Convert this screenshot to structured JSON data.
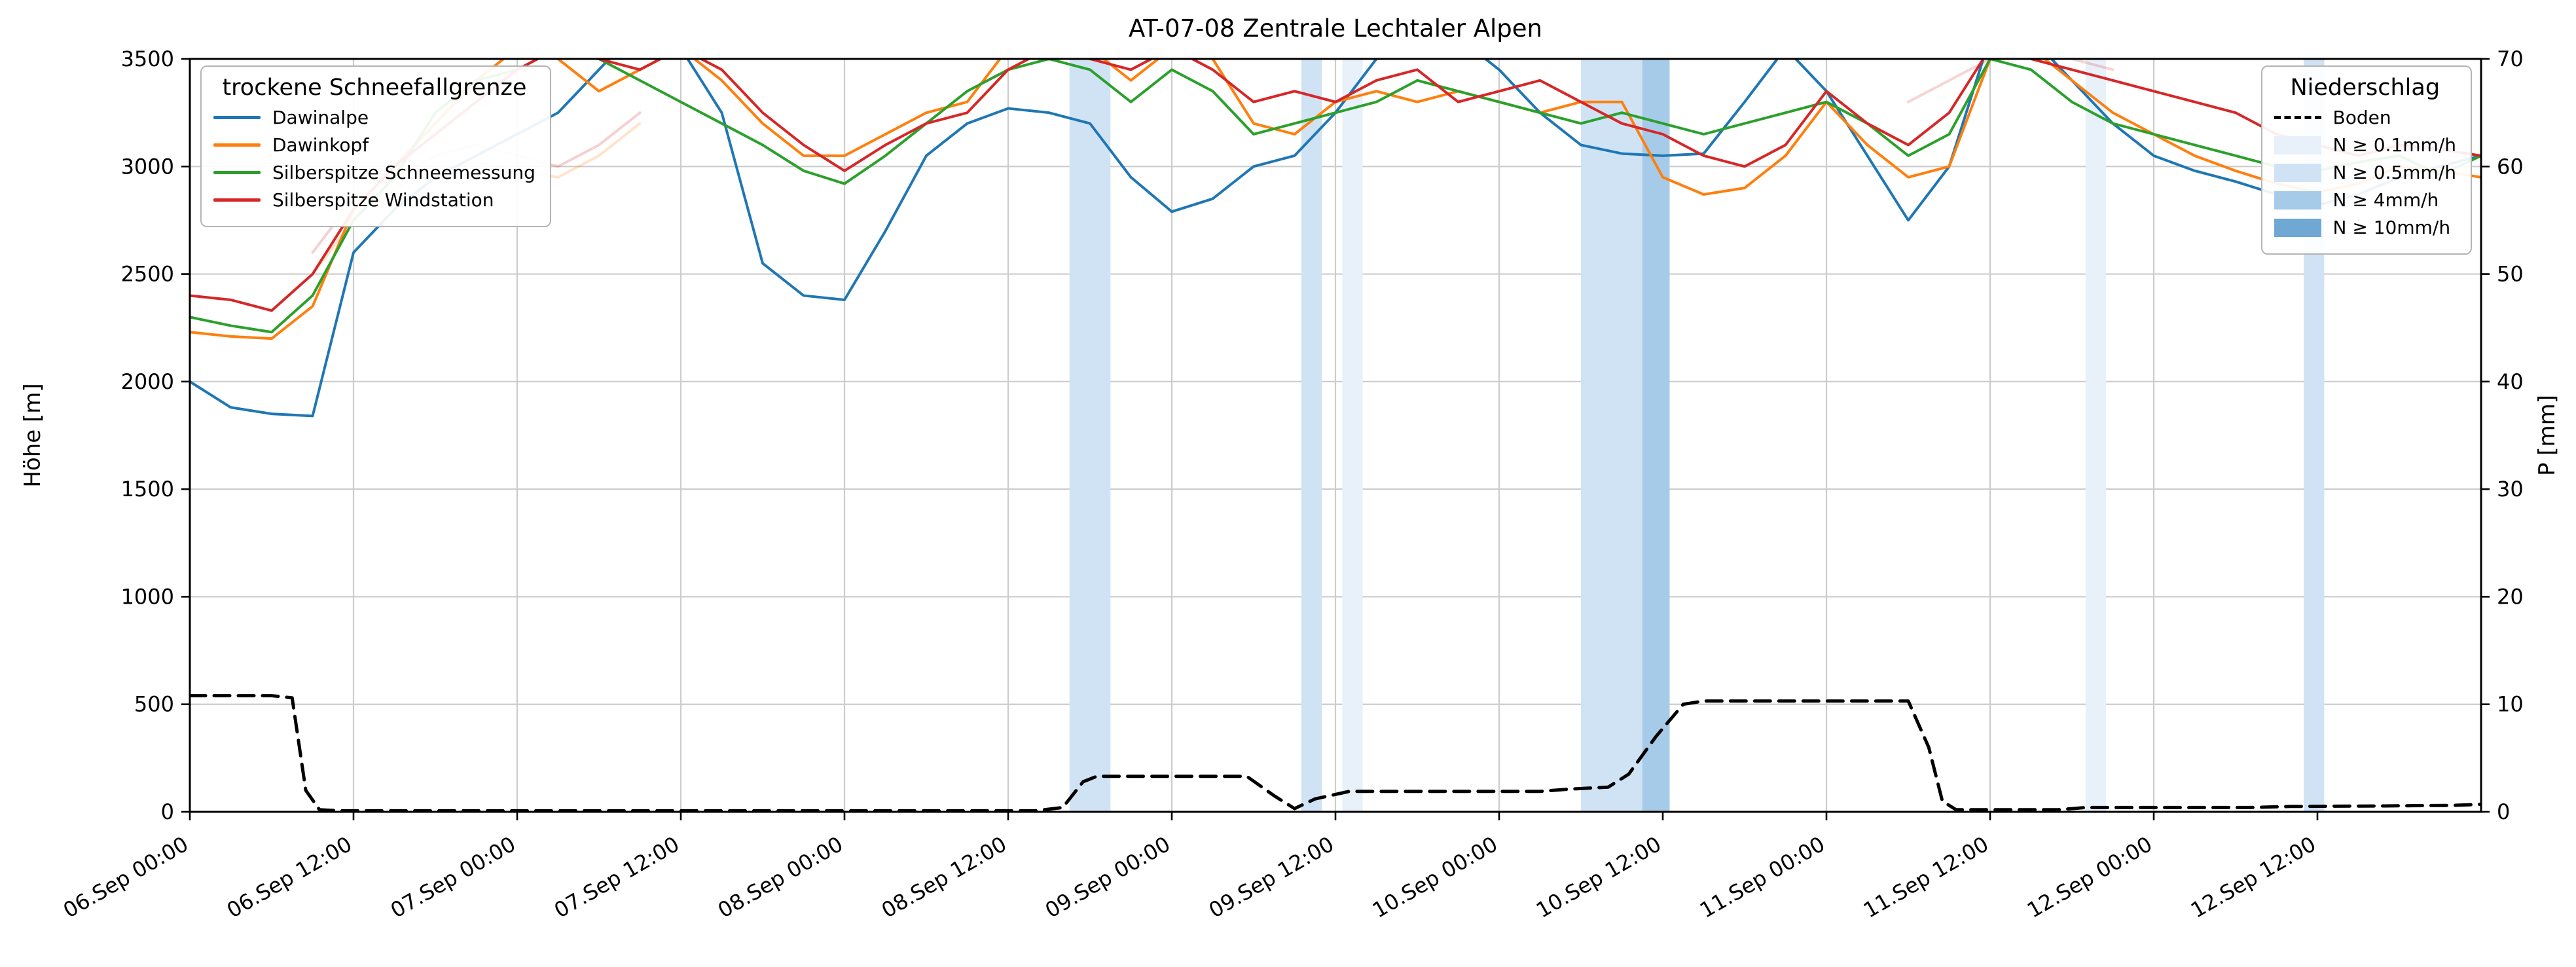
{
  "title": "AT-07-08 Zentrale Lechtaler Alpen",
  "axes": {
    "left_label": "Höhe [m]",
    "right_label": "P [mm]",
    "left_ticks": [
      0,
      500,
      1000,
      1500,
      2000,
      2500,
      3000,
      3500
    ],
    "right_ticks": [
      0,
      10,
      20,
      30,
      40,
      50,
      60,
      70
    ],
    "x_ticks": [
      {
        "t": 0,
        "label": "06.Sep 00:00"
      },
      {
        "t": 12,
        "label": "06.Sep 12:00"
      },
      {
        "t": 24,
        "label": "07.Sep 00:00"
      },
      {
        "t": 36,
        "label": "07.Sep 12:00"
      },
      {
        "t": 48,
        "label": "08.Sep 00:00"
      },
      {
        "t": 60,
        "label": "08.Sep 12:00"
      },
      {
        "t": 72,
        "label": "09.Sep 00:00"
      },
      {
        "t": 84,
        "label": "09.Sep 12:00"
      },
      {
        "t": 96,
        "label": "10.Sep 00:00"
      },
      {
        "t": 108,
        "label": "10.Sep 12:00"
      },
      {
        "t": 120,
        "label": "11.Sep 00:00"
      },
      {
        "t": 132,
        "label": "11.Sep 12:00"
      },
      {
        "t": 144,
        "label": "12.Sep 00:00"
      },
      {
        "t": 156,
        "label": "12.Sep 12:00"
      }
    ]
  },
  "legend_snowline": {
    "title": "trockene Schneefallgrenze",
    "entries": [
      {
        "label": "Dawinalpe",
        "color": "#1f77b4",
        "type": "line"
      },
      {
        "label": "Dawinkopf",
        "color": "#ff7f0e",
        "type": "line"
      },
      {
        "label": "Silberspitze Schneemessung",
        "color": "#2ca02c",
        "type": "line"
      },
      {
        "label": "Silberspitze Windstation",
        "color": "#d62728",
        "type": "line"
      }
    ]
  },
  "legend_precip": {
    "title": "Niederschlag",
    "entries": [
      {
        "label": "Boden",
        "color": "#000000",
        "type": "dash"
      },
      {
        "label": "N ≥ 0.1mm/h",
        "color": "#e8f1fa",
        "type": "patch"
      },
      {
        "label": "N ≥ 0.5mm/h",
        "color": "#cfe3f5",
        "type": "patch"
      },
      {
        "label": "N ≥ 4mm/h",
        "color": "#a6cbe8",
        "type": "patch"
      },
      {
        "label": "N ≥ 10mm/h",
        "color": "#70a8d4",
        "type": "patch"
      }
    ]
  },
  "chart_data": {
    "type": "line",
    "title": "AT-07-08 Zentrale Lechtaler Alpen",
    "xlabel": "",
    "ylabel_left": "Höhe [m]",
    "ylabel_right": "P [mm]",
    "grid": true,
    "legend_position": [
      "upper left",
      "upper right"
    ],
    "x_axis": {
      "unit": "hours since 06.Sep 00:00",
      "range": [
        0,
        168
      ]
    },
    "ylim_left": [
      0,
      3500
    ],
    "ylim_right": [
      0,
      70
    ],
    "hours": [
      0,
      3,
      6,
      9,
      12,
      15,
      18,
      21,
      24,
      27,
      30,
      33,
      36,
      39,
      42,
      45,
      48,
      51,
      54,
      57,
      60,
      63,
      66,
      69,
      72,
      75,
      78,
      81,
      84,
      87,
      90,
      93,
      96,
      99,
      102,
      105,
      108,
      111,
      114,
      117,
      120,
      123,
      126,
      129,
      132,
      135,
      138,
      141,
      144,
      147,
      150,
      153,
      156,
      159,
      162,
      165,
      168
    ],
    "series": [
      {
        "name": "Dawinalpe",
        "color": "#1f77b4",
        "axis": "left",
        "values": [
          2000,
          1880,
          1850,
          1840,
          2600,
          2800,
          2950,
          3050,
          3150,
          3250,
          3450,
          3650,
          3550,
          3250,
          2550,
          2400,
          2380,
          2700,
          3050,
          3200,
          3270,
          3250,
          3200,
          2950,
          2790,
          2850,
          3000,
          3050,
          3250,
          3500,
          3650,
          3600,
          3450,
          3250,
          3100,
          3060,
          3050,
          3060,
          3300,
          3550,
          3350,
          3050,
          2750,
          3000,
          3600,
          3600,
          3400,
          3200,
          3050,
          2980,
          2930,
          2870,
          2820,
          2870,
          2950,
          3000,
          3050
        ]
      },
      {
        "name": "Dawinkopf",
        "color": "#ff7f0e",
        "axis": "left",
        "values": [
          2230,
          2210,
          2200,
          2350,
          2800,
          3000,
          3200,
          3400,
          3550,
          3500,
          3350,
          3450,
          3550,
          3400,
          3200,
          3050,
          3050,
          3150,
          3250,
          3300,
          3550,
          3600,
          3550,
          3400,
          3550,
          3500,
          3200,
          3150,
          3300,
          3350,
          3300,
          3350,
          3300,
          3250,
          3300,
          3300,
          2950,
          2870,
          2900,
          3050,
          3300,
          3100,
          2950,
          3000,
          3500,
          3550,
          3400,
          3250,
          3150,
          3050,
          2980,
          2920,
          2880,
          2920,
          3000,
          2980,
          2950
        ]
      },
      {
        "name": "Silberspitze Schneemessung",
        "color": "#2ca02c",
        "axis": "left",
        "values": [
          2300,
          2260,
          2230,
          2400,
          2750,
          2950,
          3250,
          3400,
          3450,
          3550,
          3500,
          3400,
          3300,
          3200,
          3100,
          2980,
          2920,
          3050,
          3200,
          3350,
          3450,
          3500,
          3450,
          3300,
          3450,
          3350,
          3150,
          3200,
          3250,
          3300,
          3400,
          3350,
          3300,
          3250,
          3200,
          3250,
          3200,
          3150,
          3200,
          3250,
          3300,
          3200,
          3050,
          3150,
          3500,
          3450,
          3300,
          3200,
          3150,
          3100,
          3050,
          3000,
          2980,
          3020,
          3050,
          2960,
          3050
        ]
      },
      {
        "name": "Silberspitze Windstation",
        "color": "#d62728",
        "axis": "left",
        "values": [
          2400,
          2380,
          2330,
          2500,
          2800,
          3000,
          3150,
          3300,
          3450,
          3550,
          3500,
          3450,
          3550,
          3450,
          3250,
          3100,
          2980,
          3100,
          3200,
          3250,
          3450,
          3550,
          3500,
          3450,
          3550,
          3450,
          3300,
          3350,
          3300,
          3400,
          3450,
          3300,
          3350,
          3400,
          3300,
          3200,
          3150,
          3050,
          3000,
          3100,
          3350,
          3200,
          3100,
          3250,
          3550,
          3500,
          3450,
          3400,
          3350,
          3300,
          3250,
          3150,
          3100,
          3050,
          3100,
          3080,
          3050
        ]
      }
    ],
    "ghost_lines": [
      {
        "name": "Silberspitze Windstation (blass)",
        "color": "#d62728",
        "opacity": 0.22,
        "points": [
          [
            9,
            2600
          ],
          [
            12,
            2850
          ],
          [
            15,
            2950
          ],
          [
            18,
            3050
          ],
          [
            21,
            3100
          ],
          [
            24,
            3050
          ],
          [
            27,
            3000
          ],
          [
            30,
            3100
          ],
          [
            33,
            3250
          ]
        ]
      },
      {
        "name": "Dawinkopf (blass)",
        "color": "#ff7f0e",
        "opacity": 0.22,
        "points": [
          [
            9,
            2500
          ],
          [
            12,
            2750
          ],
          [
            15,
            2900
          ],
          [
            18,
            2980
          ],
          [
            21,
            3020
          ],
          [
            24,
            2980
          ],
          [
            27,
            2950
          ],
          [
            30,
            3050
          ],
          [
            33,
            3200
          ]
        ]
      },
      {
        "name": "blasse Linie rechts",
        "color": "#d62728",
        "opacity": 0.2,
        "points": [
          [
            126,
            3300
          ],
          [
            129,
            3400
          ],
          [
            132,
            3500
          ],
          [
            135,
            3550
          ],
          [
            138,
            3500
          ],
          [
            141,
            3450
          ]
        ]
      }
    ],
    "boden": {
      "name": "Boden",
      "color": "#000000",
      "dashed": true,
      "axis": "right",
      "points": [
        [
          0,
          10.8
        ],
        [
          6,
          10.8
        ],
        [
          7.5,
          10.6
        ],
        [
          8.5,
          2
        ],
        [
          9.5,
          0.2
        ],
        [
          11,
          0.1
        ],
        [
          62,
          0.1
        ],
        [
          64,
          0.4
        ],
        [
          65.5,
          2.8
        ],
        [
          66.5,
          3.3
        ],
        [
          77.5,
          3.3
        ],
        [
          79.5,
          1.5
        ],
        [
          81,
          0.3
        ],
        [
          82.5,
          1.2
        ],
        [
          85,
          1.9
        ],
        [
          99,
          1.9
        ],
        [
          101,
          2.1
        ],
        [
          104,
          2.3
        ],
        [
          105.5,
          3.5
        ],
        [
          107.5,
          7
        ],
        [
          109.5,
          10
        ],
        [
          111,
          10.3
        ],
        [
          126,
          10.3
        ],
        [
          127.5,
          6
        ],
        [
          128.5,
          1
        ],
        [
          129.5,
          0.2
        ],
        [
          137,
          0.2
        ],
        [
          139,
          0.4
        ],
        [
          151,
          0.4
        ],
        [
          154,
          0.5
        ],
        [
          161,
          0.55
        ],
        [
          166,
          0.6
        ],
        [
          168,
          0.7
        ]
      ]
    },
    "precip_bands": [
      {
        "from": 64.5,
        "to": 67.5,
        "intensity": "0.5"
      },
      {
        "from": 81.5,
        "to": 83,
        "intensity": "0.5"
      },
      {
        "from": 84.5,
        "to": 86,
        "intensity": "0.1"
      },
      {
        "from": 102,
        "to": 108.5,
        "intensity": "0.5"
      },
      {
        "from": 106.5,
        "to": 108.5,
        "intensity": "4"
      },
      {
        "from": 139,
        "to": 140.5,
        "intensity": "0.1"
      },
      {
        "from": 155,
        "to": 156.5,
        "intensity": "0.5"
      }
    ],
    "intensity_colors": {
      "0.1": "#e8f1fa",
      "0.5": "#cfe3f5",
      "4": "#a6cbe8",
      "10": "#70a8d4"
    }
  }
}
